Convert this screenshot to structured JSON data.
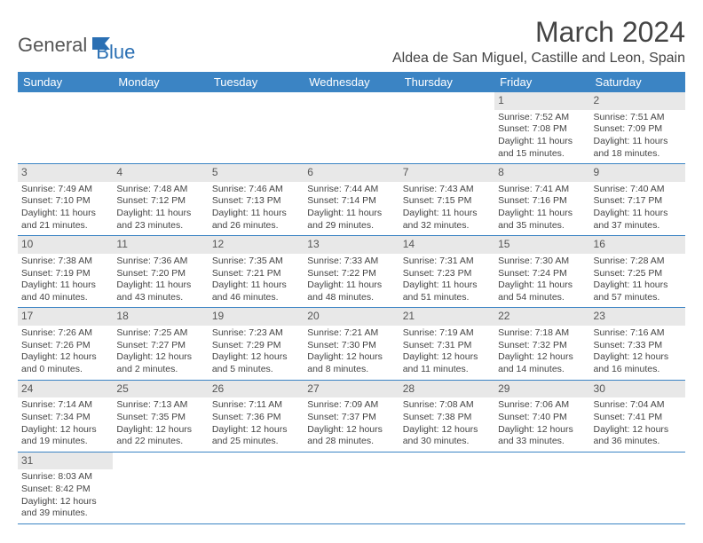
{
  "logo": {
    "part1": "General",
    "part2": "Blue"
  },
  "title": "March 2024",
  "location": "Aldea de San Miguel, Castille and Leon, Spain",
  "weekdays": [
    "Sunday",
    "Monday",
    "Tuesday",
    "Wednesday",
    "Thursday",
    "Friday",
    "Saturday"
  ],
  "colors": {
    "header_bg": "#3b84c4",
    "header_fg": "#ffffff",
    "daynum_bg": "#e8e8e8",
    "rowline": "#3b84c4",
    "logo_blue": "#2a6fb3"
  },
  "weeks": [
    [
      null,
      null,
      null,
      null,
      null,
      {
        "n": "1",
        "sr": "7:52 AM",
        "ss": "7:08 PM",
        "dl": "11 hours and 15 minutes."
      },
      {
        "n": "2",
        "sr": "7:51 AM",
        "ss": "7:09 PM",
        "dl": "11 hours and 18 minutes."
      }
    ],
    [
      {
        "n": "3",
        "sr": "7:49 AM",
        "ss": "7:10 PM",
        "dl": "11 hours and 21 minutes."
      },
      {
        "n": "4",
        "sr": "7:48 AM",
        "ss": "7:12 PM",
        "dl": "11 hours and 23 minutes."
      },
      {
        "n": "5",
        "sr": "7:46 AM",
        "ss": "7:13 PM",
        "dl": "11 hours and 26 minutes."
      },
      {
        "n": "6",
        "sr": "7:44 AM",
        "ss": "7:14 PM",
        "dl": "11 hours and 29 minutes."
      },
      {
        "n": "7",
        "sr": "7:43 AM",
        "ss": "7:15 PM",
        "dl": "11 hours and 32 minutes."
      },
      {
        "n": "8",
        "sr": "7:41 AM",
        "ss": "7:16 PM",
        "dl": "11 hours and 35 minutes."
      },
      {
        "n": "9",
        "sr": "7:40 AM",
        "ss": "7:17 PM",
        "dl": "11 hours and 37 minutes."
      }
    ],
    [
      {
        "n": "10",
        "sr": "7:38 AM",
        "ss": "7:19 PM",
        "dl": "11 hours and 40 minutes."
      },
      {
        "n": "11",
        "sr": "7:36 AM",
        "ss": "7:20 PM",
        "dl": "11 hours and 43 minutes."
      },
      {
        "n": "12",
        "sr": "7:35 AM",
        "ss": "7:21 PM",
        "dl": "11 hours and 46 minutes."
      },
      {
        "n": "13",
        "sr": "7:33 AM",
        "ss": "7:22 PM",
        "dl": "11 hours and 48 minutes."
      },
      {
        "n": "14",
        "sr": "7:31 AM",
        "ss": "7:23 PM",
        "dl": "11 hours and 51 minutes."
      },
      {
        "n": "15",
        "sr": "7:30 AM",
        "ss": "7:24 PM",
        "dl": "11 hours and 54 minutes."
      },
      {
        "n": "16",
        "sr": "7:28 AM",
        "ss": "7:25 PM",
        "dl": "11 hours and 57 minutes."
      }
    ],
    [
      {
        "n": "17",
        "sr": "7:26 AM",
        "ss": "7:26 PM",
        "dl": "12 hours and 0 minutes."
      },
      {
        "n": "18",
        "sr": "7:25 AM",
        "ss": "7:27 PM",
        "dl": "12 hours and 2 minutes."
      },
      {
        "n": "19",
        "sr": "7:23 AM",
        "ss": "7:29 PM",
        "dl": "12 hours and 5 minutes."
      },
      {
        "n": "20",
        "sr": "7:21 AM",
        "ss": "7:30 PM",
        "dl": "12 hours and 8 minutes."
      },
      {
        "n": "21",
        "sr": "7:19 AM",
        "ss": "7:31 PM",
        "dl": "12 hours and 11 minutes."
      },
      {
        "n": "22",
        "sr": "7:18 AM",
        "ss": "7:32 PM",
        "dl": "12 hours and 14 minutes."
      },
      {
        "n": "23",
        "sr": "7:16 AM",
        "ss": "7:33 PM",
        "dl": "12 hours and 16 minutes."
      }
    ],
    [
      {
        "n": "24",
        "sr": "7:14 AM",
        "ss": "7:34 PM",
        "dl": "12 hours and 19 minutes."
      },
      {
        "n": "25",
        "sr": "7:13 AM",
        "ss": "7:35 PM",
        "dl": "12 hours and 22 minutes."
      },
      {
        "n": "26",
        "sr": "7:11 AM",
        "ss": "7:36 PM",
        "dl": "12 hours and 25 minutes."
      },
      {
        "n": "27",
        "sr": "7:09 AM",
        "ss": "7:37 PM",
        "dl": "12 hours and 28 minutes."
      },
      {
        "n": "28",
        "sr": "7:08 AM",
        "ss": "7:38 PM",
        "dl": "12 hours and 30 minutes."
      },
      {
        "n": "29",
        "sr": "7:06 AM",
        "ss": "7:40 PM",
        "dl": "12 hours and 33 minutes."
      },
      {
        "n": "30",
        "sr": "7:04 AM",
        "ss": "7:41 PM",
        "dl": "12 hours and 36 minutes."
      }
    ],
    [
      {
        "n": "31",
        "sr": "8:03 AM",
        "ss": "8:42 PM",
        "dl": "12 hours and 39 minutes."
      },
      null,
      null,
      null,
      null,
      null,
      null
    ]
  ],
  "labels": {
    "sunrise": "Sunrise:",
    "sunset": "Sunset:",
    "daylight": "Daylight:"
  }
}
